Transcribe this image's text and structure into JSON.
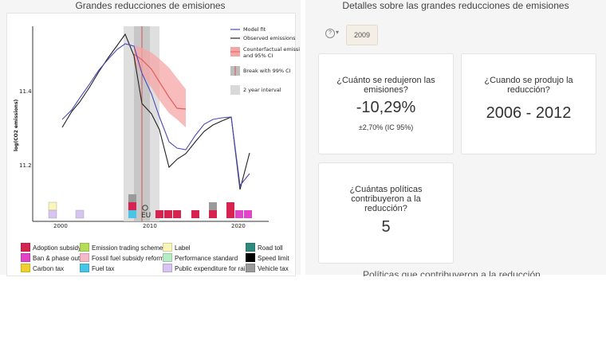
{
  "left": {
    "title": "Grandes reducciones de emisiones",
    "chart": {
      "ylabel": "log(CO2 emissions)",
      "y_ticks": [
        "11.4",
        "11.2"
      ],
      "x_ticks": [
        "2000",
        "2010",
        "2020"
      ],
      "plot_legend": {
        "model_fit": "Model fit",
        "observed": "Observed emissions",
        "counterfactual_1": "Counterfactual emissi",
        "counterfactual_2": "and 95% CI",
        "break": "Break with 99% CI",
        "interval": "2 year interval"
      },
      "eu_label": "EU"
    },
    "policy_legend": [
      {
        "label": "Adoption subsidy",
        "color": "#d6234f"
      },
      {
        "label": "Ban & phase out",
        "color": "#e044c8"
      },
      {
        "label": "Carbon tax",
        "color": "#f1d02d"
      },
      {
        "label": "Emission trading scheme",
        "color": "#b5dd5a"
      },
      {
        "label": "Fossil fuel subsidy reform",
        "color": "#f6b9c9"
      },
      {
        "label": "Fuel tax",
        "color": "#47c4e6"
      },
      {
        "label": "Label",
        "color": "#faf5b8"
      },
      {
        "label": "Performance standard",
        "color": "#b6ecc4"
      },
      {
        "label": "Public expenditure for rail",
        "color": "#d7c4f0"
      },
      {
        "label": "Road toll",
        "color": "#2f8a7e"
      },
      {
        "label": "Speed limit",
        "color": "#000000"
      },
      {
        "label": "Vehicle tax",
        "color": "#9a9a9a"
      }
    ]
  },
  "right": {
    "title": "Detalles sobre las grandes reducciones de emisiones",
    "year_button": "2009",
    "cards": {
      "reduction_q": "¿Cuánto se redujeron las emisiones?",
      "reduction_v": "-10,29%",
      "reduction_sub": "±2,70% (IC 95%)",
      "when_q": "¿Cuando se produjo la reducción?",
      "when_v": "2006 - 2012",
      "policies_q": "¿Cuántas políticas contribuyeron a la reducción?",
      "policies_v": "5"
    },
    "footer_partial": "Políticas que contribuyeron a la reducción"
  }
}
